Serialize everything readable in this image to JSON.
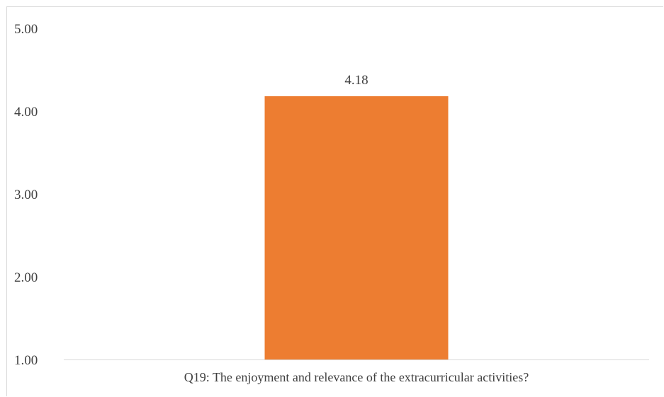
{
  "chart_data": {
    "type": "bar",
    "categories": [
      "Q19: The enjoyment and relevance of the extracurricular activities?"
    ],
    "values": [
      4.18
    ],
    "data_labels": [
      "4.18"
    ],
    "title": "",
    "xlabel": "",
    "ylabel": "",
    "ylim": [
      1,
      5
    ],
    "yticks": [
      1,
      2,
      3,
      4,
      5
    ],
    "ytick_labels": [
      "1.00",
      "2.00",
      "3.00",
      "4.00",
      "5.00"
    ],
    "grid": false,
    "legend": "none",
    "bar_color": "#ED7D31",
    "axis_color": "#d9d9d9",
    "text_color": "#404040"
  }
}
